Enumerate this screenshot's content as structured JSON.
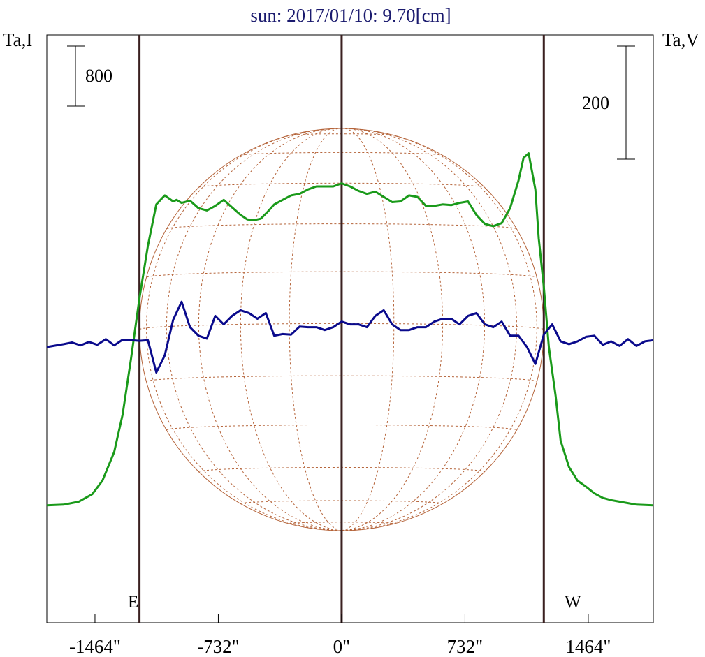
{
  "title": "sun: 2017/01/10: 9.70[cm]",
  "left_axis_label": "Ta,I",
  "right_axis_label": "Ta,V",
  "scale_bars": {
    "left_label": "800",
    "right_label": "200"
  },
  "limb_labels": {
    "east": "E",
    "west": "W"
  },
  "colors": {
    "title": "#1a1a6e",
    "intensity": "#1a9a1a",
    "polarization": "#0a0a8c",
    "disk": "#b5643a",
    "markers": "#3a2020",
    "frame": "#000000"
  },
  "chart_data": {
    "type": "line",
    "title": "sun: 2017/01/10: 9.70[cm]",
    "xlabel": "",
    "xlim": [
      -1750,
      1850
    ],
    "x_ticks": [
      -1464,
      -732,
      0,
      732,
      1464
    ],
    "x_tick_labels": [
      "-1464\"",
      "-732\"",
      "0\"",
      "732\"",
      "1464\""
    ],
    "vertical_markers": [
      -1200,
      0,
      1200
    ],
    "disk_radius": 1200,
    "series": [
      {
        "id": "intensity",
        "x": [
          -1750,
          -1650,
          -1560,
          -1480,
          -1420,
          -1350,
          -1300,
          -1250,
          -1200,
          -1150,
          -1100,
          -1050,
          -1000,
          -980,
          -950,
          -900,
          -850,
          -800,
          -750,
          -700,
          -650,
          -600,
          -560,
          -520,
          -480,
          -440,
          -400,
          -350,
          -300,
          -250,
          -200,
          -150,
          -100,
          -50,
          0,
          50,
          100,
          150,
          200,
          250,
          300,
          350,
          400,
          450,
          500,
          550,
          600,
          650,
          700,
          750,
          800,
          850,
          900,
          950,
          1000,
          1050,
          1080,
          1110,
          1150,
          1170,
          1200,
          1230,
          1270,
          1300,
          1350,
          1400,
          1450,
          1500,
          1550,
          1600,
          1650,
          1700,
          1750,
          1800,
          1850
        ],
        "y": [
          -2110,
          -2100,
          -2060,
          -1960,
          -1780,
          -1400,
          -900,
          -150,
          650,
          1350,
          1900,
          2020,
          1940,
          1960,
          1920,
          1950,
          1850,
          1820,
          1880,
          1960,
          1860,
          1760,
          1700,
          1690,
          1710,
          1800,
          1900,
          1960,
          2020,
          2040,
          2100,
          2140,
          2140,
          2140,
          2180,
          2140,
          2080,
          2040,
          2070,
          2000,
          1930,
          1940,
          2020,
          2000,
          1880,
          1880,
          1900,
          1890,
          1920,
          1940,
          1760,
          1640,
          1610,
          1650,
          1850,
          2220,
          2520,
          2580,
          2100,
          1450,
          800,
          0,
          -650,
          -1250,
          -1600,
          -1780,
          -1860,
          -1950,
          -2010,
          -2040,
          -2060,
          -2080,
          -2100,
          -2105,
          -2110
        ]
      },
      {
        "id": "polarization",
        "x": [
          -1750,
          -1650,
          -1600,
          -1550,
          -1500,
          -1450,
          -1400,
          -1350,
          -1300,
          -1250,
          -1200,
          -1150,
          -1100,
          -1050,
          -1000,
          -950,
          -900,
          -850,
          -800,
          -750,
          -700,
          -650,
          -600,
          -550,
          -500,
          -450,
          -400,
          -350,
          -300,
          -250,
          -200,
          -150,
          -100,
          -50,
          0,
          50,
          100,
          150,
          200,
          250,
          300,
          350,
          400,
          450,
          500,
          550,
          600,
          650,
          700,
          750,
          800,
          850,
          900,
          950,
          1000,
          1050,
          1100,
          1150,
          1200,
          1250,
          1300,
          1350,
          1400,
          1450,
          1500,
          1550,
          1600,
          1650,
          1700,
          1750,
          1800,
          1850
        ],
        "y": [
          0,
          5,
          8,
          3,
          9,
          4,
          14,
          3,
          13,
          12,
          11,
          12,
          -45,
          -15,
          48,
          80,
          35,
          20,
          15,
          55,
          40,
          55,
          65,
          60,
          50,
          60,
          20,
          23,
          22,
          36,
          35,
          35,
          30,
          35,
          45,
          40,
          40,
          35,
          55,
          65,
          40,
          30,
          30,
          35,
          35,
          45,
          50,
          50,
          40,
          55,
          60,
          40,
          35,
          45,
          20,
          20,
          0,
          -30,
          22,
          40,
          10,
          5,
          10,
          18,
          20,
          4,
          10,
          2,
          14,
          2,
          10,
          12
        ]
      }
    ]
  }
}
